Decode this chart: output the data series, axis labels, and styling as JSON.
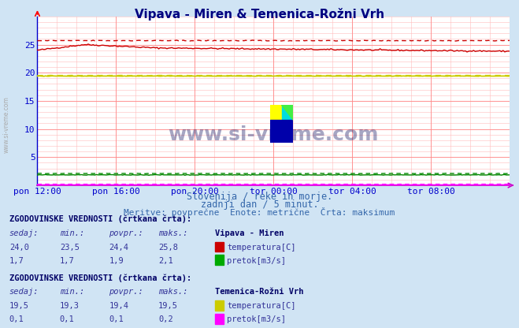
{
  "title": "Vipava - Miren & Temenica-Rožni Vrh",
  "subtitle1": "Slovenija / reke in morje.",
  "subtitle2": "zadnji dan / 5 minut.",
  "subtitle3": "Meritve: povprečne  Enote: metrične  Črta: maksimum",
  "bg_color": "#d0e4f4",
  "plot_bg": "#ffffff",
  "xlim": [
    0,
    288
  ],
  "ylim": [
    0,
    30
  ],
  "yticks": [
    0,
    5,
    10,
    15,
    20,
    25
  ],
  "xtick_labels": [
    "pon 12:00",
    "pon 16:00",
    "pon 20:00",
    "tor 00:00",
    "tor 04:00",
    "tor 08:00"
  ],
  "xtick_positions": [
    0,
    48,
    96,
    144,
    192,
    240
  ],
  "vipava_temp_color": "#cc0000",
  "vipava_flow_color": "#008800",
  "temenica_temp_color": "#cccc00",
  "temenica_flow_color": "#ff00ff",
  "axis_bottom_color": "#cc00cc",
  "axis_left_color": "#0000cc",
  "watermark": "www.si-vreme.com",
  "table1_header": "ZGODOVINSKE VREDNOSTI (črtkana črta):",
  "table1_station": "Vipava - Miren",
  "table1_row1": [
    "24,0",
    "23,5",
    "24,4",
    "25,8",
    "temperatura[C]"
  ],
  "table1_row2": [
    "1,7",
    "1,7",
    "1,9",
    "2,1",
    "pretok[m3/s]"
  ],
  "table2_header": "ZGODOVINSKE VREDNOSTI (črtkana črta):",
  "table2_station": "Temenica-Rožni Vrh",
  "table2_row1": [
    "19,5",
    "19,3",
    "19,4",
    "19,5",
    "temperatura[C]"
  ],
  "table2_row2": [
    "0,1",
    "0,1",
    "0,1",
    "0,2",
    "pretok[m3/s]"
  ],
  "col_headers": [
    "sedaj:",
    "min.:",
    "povpr.:",
    "maks.:"
  ],
  "n_points": 289,
  "logo_colors": [
    "#ffff00",
    "#00dddd",
    "#0000aa",
    "#44ee44"
  ]
}
